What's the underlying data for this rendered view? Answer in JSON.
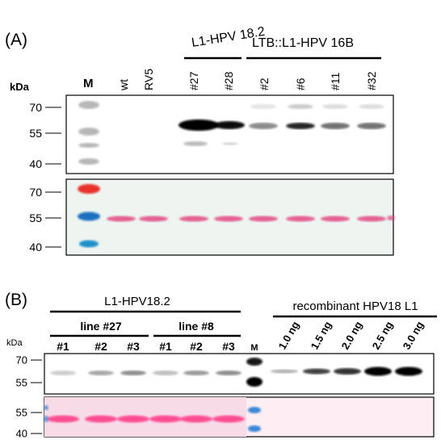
{
  "panel_a": {
    "label": "(A)",
    "unit": "kDa",
    "marker": "M",
    "lanes": [
      "wt",
      "RV5",
      "#27",
      "#28",
      "#2",
      "#6",
      "#11",
      "#32"
    ],
    "groups": [
      "L1-HPV 18.2",
      "LTB::L1-HPV 16B"
    ],
    "blot_ticks": [
      "70",
      "55",
      "40"
    ],
    "stain_ticks": [
      "70",
      "55",
      "40"
    ]
  },
  "panel_b": {
    "label": "(B)",
    "unit": "kDa",
    "group": "L1-HPV18.2",
    "lines": [
      "line #27",
      "line #8"
    ],
    "lanes": [
      "#1",
      "#2",
      "#3",
      "#1",
      "#2",
      "#3"
    ],
    "marker": "M",
    "recombinant": "recombinant HPV18 L1",
    "amounts": [
      "1.0 ng",
      "1.5 ng",
      "2.0 ng",
      "2.5 ng",
      "3.0 ng"
    ],
    "blot_ticks": [
      "70",
      "55"
    ],
    "stain_ticks": [
      "55",
      "40"
    ]
  }
}
